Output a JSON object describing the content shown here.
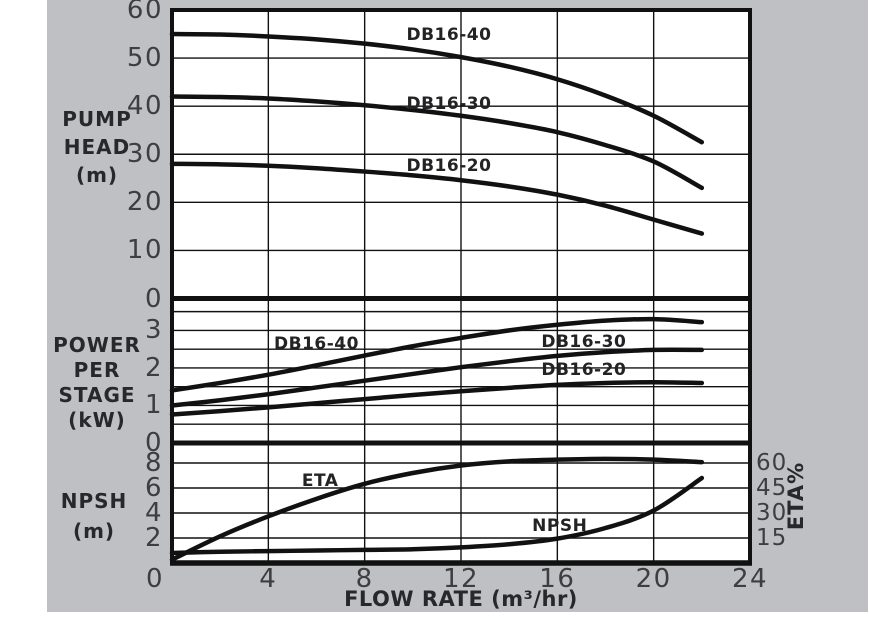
{
  "page": {
    "background": "#ffffff",
    "panel_background": "#bec0c3",
    "plot_background": "#ffffff",
    "line_color": "#111111",
    "tick_text_color": "#3e3e40",
    "label_text_color": "#28282a"
  },
  "xaxis": {
    "label": "FLOW RATE (m³/hr)",
    "ticks": [
      0,
      4,
      8,
      12,
      16,
      20,
      24
    ],
    "lim": [
      0,
      24
    ]
  },
  "chart_data": [
    {
      "id": "pump-head",
      "type": "line",
      "ylabel_lines": [
        "PUMP",
        "HEAD",
        "(m)"
      ],
      "ylim": [
        0,
        60
      ],
      "yticks": [
        60,
        50,
        40,
        30,
        20,
        10,
        0
      ],
      "gridlines": [
        10,
        20,
        30,
        40,
        50
      ],
      "grid": true,
      "x": [
        0,
        2,
        4,
        6,
        8,
        10,
        12,
        14,
        16,
        18,
        20,
        22
      ],
      "series": [
        {
          "name": "DB16-40",
          "values": [
            55,
            54.9,
            54.5,
            53.9,
            53,
            51.8,
            50.2,
            48.2,
            45.6,
            42.2,
            38,
            32.5
          ],
          "label_at": {
            "x": 11.5,
            "y": 54.8
          }
        },
        {
          "name": "DB16-30",
          "values": [
            42,
            41.9,
            41.6,
            41,
            40.2,
            39.2,
            38,
            36.5,
            34.6,
            31.9,
            28.5,
            23
          ],
          "label_at": {
            "x": 11.5,
            "y": 40.5
          }
        },
        {
          "name": "DB16-20",
          "values": [
            28,
            27.9,
            27.6,
            27.1,
            26.4,
            25.6,
            24.6,
            23.3,
            21.6,
            19.3,
            16.4,
            13.5
          ],
          "label_at": {
            "x": 11.5,
            "y": 27.6
          }
        }
      ]
    },
    {
      "id": "power-per-stage",
      "type": "line",
      "ylabel_lines": [
        "POWER",
        "PER",
        "STAGE",
        "(kW)"
      ],
      "ylim": [
        0,
        3.85
      ],
      "yticks": [
        3,
        2,
        1,
        0
      ],
      "gridlines": [
        0.5,
        1,
        1.5,
        2,
        2.5,
        3,
        3.5
      ],
      "grid": true,
      "x": [
        0,
        2,
        4,
        6,
        8,
        10,
        12,
        14,
        16,
        18,
        20,
        22
      ],
      "series": [
        {
          "name": "DB16-40",
          "values": [
            1.4,
            1.6,
            1.82,
            2.07,
            2.33,
            2.58,
            2.8,
            3.0,
            3.15,
            3.26,
            3.3,
            3.22
          ],
          "label_at": {
            "x": 6,
            "y": 2.65
          }
        },
        {
          "name": "DB16-30",
          "values": [
            1.0,
            1.14,
            1.3,
            1.48,
            1.66,
            1.84,
            2.02,
            2.18,
            2.32,
            2.42,
            2.48,
            2.48
          ],
          "label_at": {
            "x": 17.1,
            "y": 2.68
          }
        },
        {
          "name": "DB16-20",
          "values": [
            0.76,
            0.85,
            0.95,
            1.06,
            1.17,
            1.28,
            1.38,
            1.47,
            1.55,
            1.6,
            1.62,
            1.6
          ],
          "label_at": {
            "x": 17.1,
            "y": 1.95
          }
        }
      ]
    },
    {
      "id": "npsh-eta",
      "type": "line",
      "ylabel_lines": [
        "NPSH",
        "(m)"
      ],
      "ylim": [
        0,
        9.6
      ],
      "yticks": [
        8,
        6,
        4,
        2
      ],
      "gridlines": [
        2,
        4,
        6,
        8
      ],
      "grid": true,
      "right_axis": {
        "label": "ETA%",
        "ticks": [
          60,
          45,
          30,
          15
        ],
        "percent_per_m": 7.5
      },
      "x": [
        0,
        2,
        4,
        6,
        8,
        10,
        12,
        14,
        16,
        18,
        20,
        22
      ],
      "series": [
        {
          "name": "ETA",
          "unit": "%",
          "values": [
            2,
            16,
            28,
            38.5,
            47.5,
            54,
            58.5,
            61,
            62,
            62.5,
            62,
            60.5
          ],
          "label_at": {
            "x": 6.15,
            "y": 6.6
          }
        },
        {
          "name": "NPSH",
          "unit": "m",
          "values": [
            0.8,
            0.9,
            0.95,
            1.0,
            1.05,
            1.1,
            1.25,
            1.5,
            1.95,
            2.8,
            4.2,
            6.8
          ],
          "label_at": {
            "x": 16.1,
            "y": 3.0
          }
        }
      ]
    }
  ]
}
